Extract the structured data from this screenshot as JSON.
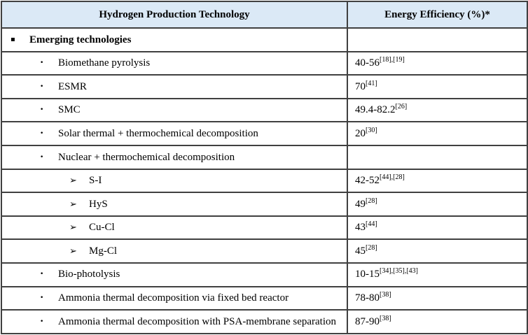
{
  "table": {
    "columns": [
      {
        "label": "Hydrogen Production Technology"
      },
      {
        "label": "Energy Efficiency (%)*"
      }
    ],
    "bullet_icons": {
      "square": "▪",
      "dot": "•",
      "arrow": "➢"
    },
    "rows": [
      {
        "level": 1,
        "bullet": "▪",
        "label": "Emerging technologies",
        "value": "",
        "refs": ""
      },
      {
        "level": 2,
        "bullet": "•",
        "label": "Biomethane pyrolysis",
        "value": "40-56",
        "refs": "[18],[19]"
      },
      {
        "level": 2,
        "bullet": "•",
        "label": "ESMR",
        "value": "70",
        "refs": "[41]"
      },
      {
        "level": 2,
        "bullet": "•",
        "label": "SMC",
        "value": "49.4-82.2",
        "refs": "[26]"
      },
      {
        "level": 2,
        "bullet": "•",
        "label": "Solar thermal + thermochemical decomposition",
        "value": "20",
        "refs": "[30]"
      },
      {
        "level": 2,
        "bullet": "•",
        "label": "Nuclear + thermochemical decomposition",
        "value": "",
        "refs": ""
      },
      {
        "level": 3,
        "bullet": "➢",
        "label": "S-I",
        "value": "42-52",
        "refs": "[44],[28]"
      },
      {
        "level": 3,
        "bullet": "➢",
        "label": "HyS",
        "value": "49",
        "refs": "[28]"
      },
      {
        "level": 3,
        "bullet": "➢",
        "label": "Cu-Cl",
        "value": "43",
        "refs": "[44]"
      },
      {
        "level": 3,
        "bullet": "➢",
        "label": "Mg-Cl",
        "value": "45",
        "refs": "[28]"
      },
      {
        "level": 2,
        "bullet": "•",
        "label": "Bio-photolysis",
        "value": "10-15",
        "refs": "[34],[35],[43]"
      },
      {
        "level": 2,
        "bullet": "•",
        "label": "Ammonia thermal decomposition via fixed bed reactor",
        "value": "78-80",
        "refs": "[38]"
      },
      {
        "level": 2,
        "bullet": "•",
        "label": "Ammonia thermal decomposition with PSA-membrane separation",
        "value": "87-90",
        "refs": "[38]"
      }
    ]
  },
  "colors": {
    "header_bg": "#dbe9f6",
    "border": "#404040",
    "text": "#000000",
    "background": "#ffffff"
  }
}
